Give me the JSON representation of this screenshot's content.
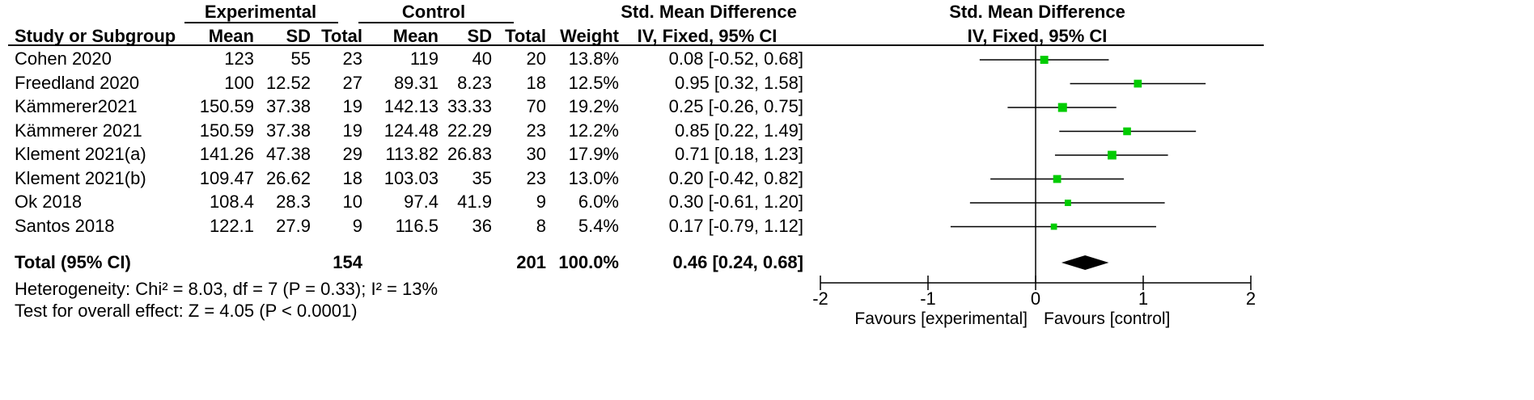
{
  "headers": {
    "group_experimental": "Experimental",
    "group_control": "Control",
    "smd_table": "Std. Mean Difference",
    "smd_plot": "Std. Mean Difference",
    "study": "Study or Subgroup",
    "exp_mean": "Mean",
    "exp_sd": "SD",
    "exp_total": "Total",
    "ctl_mean": "Mean",
    "ctl_sd": "SD",
    "ctl_total": "Total",
    "weight": "Weight",
    "method_table": "IV, Fixed, 95% CI",
    "method_plot": "IV, Fixed, 95% CI"
  },
  "studies": [
    {
      "name": "Cohen 2020",
      "exp_mean": "123",
      "exp_sd": "55",
      "exp_total": "23",
      "ctl_mean": "119",
      "ctl_sd": "40",
      "ctl_total": "20",
      "weight": "13.8%",
      "ci_text": "0.08 [-0.52, 0.68]"
    },
    {
      "name": "Freedland 2020",
      "exp_mean": "100",
      "exp_sd": "12.52",
      "exp_total": "27",
      "ctl_mean": "89.31",
      "ctl_sd": "8.23",
      "ctl_total": "18",
      "weight": "12.5%",
      "ci_text": "0.95 [0.32, 1.58]"
    },
    {
      "name": "Kämmerer2021",
      "exp_mean": "150.59",
      "exp_sd": "37.38",
      "exp_total": "19",
      "ctl_mean": "142.13",
      "ctl_sd": "33.33",
      "ctl_total": "70",
      "weight": "19.2%",
      "ci_text": "0.25 [-0.26, 0.75]"
    },
    {
      "name": "Kämmerer 2021",
      "exp_mean": "150.59",
      "exp_sd": "37.38",
      "exp_total": "19",
      "ctl_mean": "124.48",
      "ctl_sd": "22.29",
      "ctl_total": "23",
      "weight": "12.2%",
      "ci_text": "0.85 [0.22, 1.49]"
    },
    {
      "name": "Klement 2021(a)",
      "exp_mean": "141.26",
      "exp_sd": "47.38",
      "exp_total": "29",
      "ctl_mean": "113.82",
      "ctl_sd": "26.83",
      "ctl_total": "30",
      "weight": "17.9%",
      "ci_text": "0.71 [0.18, 1.23]"
    },
    {
      "name": "Klement 2021(b)",
      "exp_mean": "109.47",
      "exp_sd": "26.62",
      "exp_total": "18",
      "ctl_mean": "103.03",
      "ctl_sd": "35",
      "ctl_total": "23",
      "weight": "13.0%",
      "ci_text": "0.20 [-0.42, 0.82]"
    },
    {
      "name": "Ok 2018",
      "exp_mean": "108.4",
      "exp_sd": "28.3",
      "exp_total": "10",
      "ctl_mean": "97.4",
      "ctl_sd": "41.9",
      "ctl_total": "9",
      "weight": "6.0%",
      "ci_text": "0.30 [-0.61, 1.20]"
    },
    {
      "name": "Santos 2018",
      "exp_mean": "122.1",
      "exp_sd": "27.9",
      "exp_total": "9",
      "ctl_mean": "116.5",
      "ctl_sd": "36",
      "ctl_total": "8",
      "weight": "5.4%",
      "ci_text": "0.17 [-0.79, 1.12]"
    }
  ],
  "total": {
    "label": "Total (95% CI)",
    "exp_total": "154",
    "ctl_total": "201",
    "weight": "100.0%",
    "ci_text": "0.46 [0.24, 0.68]"
  },
  "heterogeneity": "Heterogeneity: Chi² = 8.03, df = 7 (P = 0.33); I² = 13%",
  "overall_effect": "Test for overall effect: Z = 4.05 (P < 0.0001)",
  "favours_left": "Favours [experimental]",
  "favours_right": "Favours [control]",
  "colors": {
    "marker": "#00cc00",
    "line": "#000000",
    "diamond": "#000000"
  },
  "chart_data": {
    "type": "scatter",
    "subtype": "forest-plot",
    "x_ticks": [
      "-2",
      "-1",
      "0",
      "1",
      "2"
    ],
    "xlim": [
      -2,
      2
    ],
    "grid": false,
    "studies": [
      {
        "name": "Cohen 2020",
        "smd": 0.08,
        "ci": [
          -0.52,
          0.68
        ],
        "weight": 13.8
      },
      {
        "name": "Freedland 2020",
        "smd": 0.95,
        "ci": [
          0.32,
          1.58
        ],
        "weight": 12.5
      },
      {
        "name": "Kämmerer2021",
        "smd": 0.25,
        "ci": [
          -0.26,
          0.75
        ],
        "weight": 19.2
      },
      {
        "name": "Kämmerer 2021",
        "smd": 0.85,
        "ci": [
          0.22,
          1.49
        ],
        "weight": 12.2
      },
      {
        "name": "Klement 2021(a)",
        "smd": 0.71,
        "ci": [
          0.18,
          1.23
        ],
        "weight": 17.9
      },
      {
        "name": "Klement 2021(b)",
        "smd": 0.2,
        "ci": [
          -0.42,
          0.82
        ],
        "weight": 13.0
      },
      {
        "name": "Ok 2018",
        "smd": 0.3,
        "ci": [
          -0.61,
          1.2
        ],
        "weight": 6.0
      },
      {
        "name": "Santos 2018",
        "smd": 0.17,
        "ci": [
          -0.79,
          1.12
        ],
        "weight": 5.4
      }
    ],
    "pooled": {
      "smd": 0.46,
      "ci": [
        0.24,
        0.68
      ]
    }
  }
}
